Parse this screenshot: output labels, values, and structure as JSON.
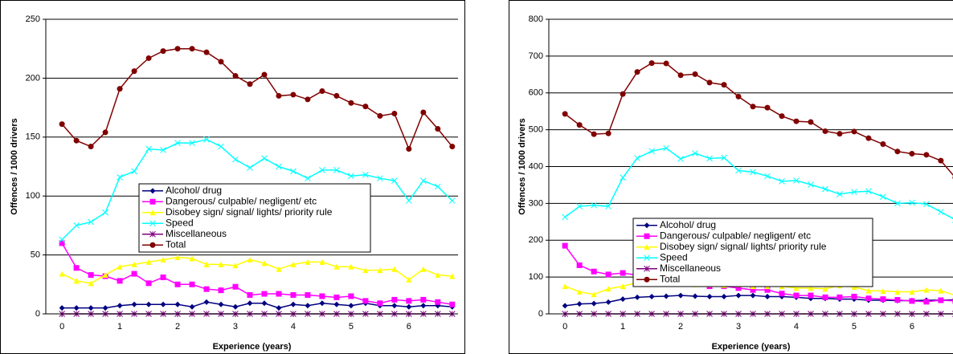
{
  "chart_data": [
    {
      "type": "line",
      "x": [
        0,
        0.25,
        0.5,
        0.75,
        1,
        1.25,
        1.5,
        1.75,
        2,
        2.25,
        2.5,
        2.75,
        3,
        3.25,
        3.5,
        3.75,
        4,
        4.25,
        4.5,
        4.75,
        5,
        5.25,
        5.5,
        5.75,
        6,
        6.25,
        6.5,
        6.75
      ],
      "x_label": "Experience (years)",
      "y_label": "Offences / 1000 drivers",
      "xlim": [
        -0.28,
        6.85
      ],
      "xticks": [
        0,
        1,
        2,
        3,
        4,
        5,
        6
      ],
      "ylim": [
        0,
        250
      ],
      "yticks": [
        0,
        50,
        100,
        150,
        200,
        250
      ],
      "grid": true,
      "legend": "center",
      "series": [
        {
          "name": "Alcohol/ drug",
          "color": "#000080",
          "marker": "diamond",
          "values": [
            5,
            5,
            5,
            5,
            7,
            8,
            8,
            8,
            8,
            6,
            10,
            8,
            6,
            9,
            9,
            5,
            8,
            7,
            9,
            8,
            7,
            9,
            7,
            7,
            6,
            7,
            7,
            6
          ]
        },
        {
          "name": "Dangerous/ culpable/ negligent/ etc",
          "color": "#ff00ff",
          "marker": "square",
          "values": [
            60,
            39,
            33,
            32,
            28,
            34,
            26,
            31,
            25,
            25,
            21,
            20,
            23,
            16,
            17,
            17,
            16,
            16,
            15,
            14,
            15,
            11,
            9,
            12,
            11,
            12,
            10,
            8
          ]
        },
        {
          "name": "Disobey sign/ signal/ lights/ priority rule",
          "color": "#ffff00",
          "marker": "triangle",
          "values": [
            34,
            28,
            26,
            33,
            40,
            42,
            44,
            46,
            48,
            47,
            42,
            42,
            41,
            46,
            43,
            38,
            42,
            44,
            44,
            40,
            40,
            37,
            37,
            38,
            29,
            38,
            33,
            32
          ]
        },
        {
          "name": "Speed",
          "color": "#00ffff",
          "marker": "x",
          "values": [
            63,
            75,
            78,
            86,
            116,
            121,
            140,
            139,
            145,
            145,
            148,
            142,
            131,
            124,
            132,
            125,
            121,
            115,
            122,
            122,
            117,
            118,
            115,
            113,
            96,
            113,
            108,
            96
          ]
        },
        {
          "name": "Miscellaneous",
          "color": "#800080",
          "marker": "star",
          "values": [
            0,
            0,
            0,
            0,
            0,
            0,
            0,
            0,
            0,
            0,
            0,
            0,
            0,
            0,
            0,
            0,
            0,
            0,
            0,
            0,
            0,
            0,
            0,
            0,
            0,
            0,
            0,
            0
          ]
        },
        {
          "name": "Total",
          "color": "#800000",
          "marker": "circle",
          "values": [
            161,
            147,
            142,
            154,
            191,
            206,
            217,
            223,
            225,
            225,
            222,
            214,
            202,
            195,
            203,
            185,
            186,
            182,
            189,
            185,
            179,
            176,
            168,
            170,
            140,
            171,
            157,
            142
          ]
        }
      ]
    },
    {
      "type": "line",
      "x": [
        0,
        0.25,
        0.5,
        0.75,
        1,
        1.25,
        1.5,
        1.75,
        2,
        2.25,
        2.5,
        2.75,
        3,
        3.25,
        3.5,
        3.75,
        4,
        4.25,
        4.5,
        4.75,
        5,
        5.25,
        5.5,
        5.75,
        6,
        6.25,
        6.5,
        6.75
      ],
      "x_label": "Experience (years)",
      "y_label": "Offences / 1000 drivers",
      "xlim": [
        -0.28,
        6.71
      ],
      "xticks": [
        0,
        1,
        2,
        3,
        4,
        5,
        6
      ],
      "ylim": [
        0,
        800
      ],
      "yticks": [
        0,
        100,
        200,
        300,
        400,
        500,
        600,
        700,
        800
      ],
      "grid": true,
      "legend": "center",
      "series": [
        {
          "name": "Alcohol/ drug",
          "color": "#000080",
          "marker": "diamond",
          "values": [
            22,
            27,
            28,
            32,
            40,
            45,
            47,
            48,
            50,
            48,
            47,
            47,
            50,
            50,
            47,
            47,
            45,
            42,
            42,
            40,
            40,
            37,
            37,
            36,
            36,
            37,
            37,
            38
          ]
        },
        {
          "name": "Dangerous/ culpable/ negligent/ etc",
          "color": "#ff00ff",
          "marker": "square",
          "values": [
            185,
            132,
            115,
            107,
            111,
            105,
            107,
            100,
            95,
            90,
            75,
            75,
            70,
            65,
            65,
            55,
            50,
            50,
            45,
            45,
            47,
            42,
            40,
            38,
            35,
            33,
            37,
            35
          ]
        },
        {
          "name": "Disobey sign/ signal/ lights/ priority rule",
          "color": "#ffff00",
          "marker": "triangle",
          "values": [
            75,
            60,
            53,
            68,
            75,
            85,
            92,
            89,
            87,
            80,
            80,
            78,
            80,
            75,
            75,
            75,
            70,
            70,
            68,
            77,
            73,
            63,
            62,
            60,
            60,
            65,
            63,
            50
          ]
        },
        {
          "name": "Speed",
          "color": "#00ffff",
          "marker": "x",
          "values": [
            263,
            292,
            295,
            292,
            370,
            423,
            442,
            450,
            421,
            436,
            422,
            424,
            389,
            385,
            374,
            360,
            362,
            351,
            339,
            325,
            331,
            333,
            318,
            300,
            302,
            298,
            277,
            255
          ]
        },
        {
          "name": "Miscellaneous",
          "color": "#800080",
          "marker": "star",
          "values": [
            0,
            0,
            0,
            0,
            0,
            0,
            0,
            0,
            0,
            0,
            0,
            0,
            0,
            0,
            0,
            0,
            0,
            0,
            0,
            0,
            0,
            0,
            0,
            0,
            0,
            0,
            0,
            0
          ]
        },
        {
          "name": "Total",
          "color": "#800000",
          "marker": "circle",
          "values": [
            543,
            513,
            488,
            490,
            597,
            657,
            681,
            680,
            648,
            651,
            628,
            622,
            590,
            563,
            560,
            537,
            523,
            521,
            496,
            489,
            495,
            477,
            461,
            441,
            435,
            432,
            416,
            370
          ]
        }
      ]
    }
  ]
}
